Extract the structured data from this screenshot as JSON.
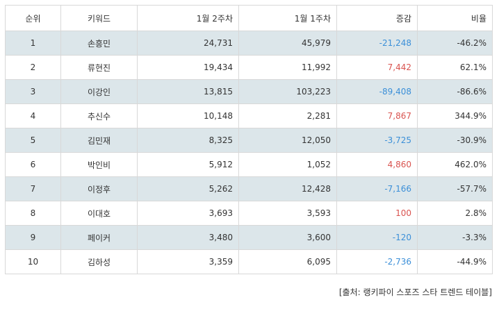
{
  "table": {
    "headers": {
      "rank": "순위",
      "keyword": "키워드",
      "week2": "1월 2주차",
      "week1": "1월 1주차",
      "change": "증감",
      "ratio": "비율"
    },
    "rows": [
      {
        "rank": "1",
        "keyword": "손흥민",
        "week2": "24,731",
        "week1": "45,979",
        "change": "-21,248",
        "ratio": "-46.2%"
      },
      {
        "rank": "2",
        "keyword": "류현진",
        "week2": "19,434",
        "week1": "11,992",
        "change": "7,442",
        "ratio": "62.1%"
      },
      {
        "rank": "3",
        "keyword": "이강인",
        "week2": "13,815",
        "week1": "103,223",
        "change": "-89,408",
        "ratio": "-86.6%"
      },
      {
        "rank": "4",
        "keyword": "추신수",
        "week2": "10,148",
        "week1": "2,281",
        "change": "7,867",
        "ratio": "344.9%"
      },
      {
        "rank": "5",
        "keyword": "김민재",
        "week2": "8,325",
        "week1": "12,050",
        "change": "-3,725",
        "ratio": "-30.9%"
      },
      {
        "rank": "6",
        "keyword": "박인비",
        "week2": "5,912",
        "week1": "1,052",
        "change": "4,860",
        "ratio": "462.0%"
      },
      {
        "rank": "7",
        "keyword": "이정후",
        "week2": "5,262",
        "week1": "12,428",
        "change": "-7,166",
        "ratio": "-57.7%"
      },
      {
        "rank": "8",
        "keyword": "이대호",
        "week2": "3,693",
        "week1": "3,593",
        "change": "100",
        "ratio": "2.8%"
      },
      {
        "rank": "9",
        "keyword": "페이커",
        "week2": "3,480",
        "week1": "3,600",
        "change": "-120",
        "ratio": "-3.3%"
      },
      {
        "rank": "10",
        "keyword": "김하성",
        "week2": "3,359",
        "week1": "6,095",
        "change": "-2,736",
        "ratio": "-44.9%"
      }
    ]
  },
  "colors": {
    "negative": "#3b8fd8",
    "positive": "#d9534f",
    "shade": "#dce6ea"
  },
  "source": "[출처: 랭키파이 스포즈 스타 트렌드 테이블]"
}
